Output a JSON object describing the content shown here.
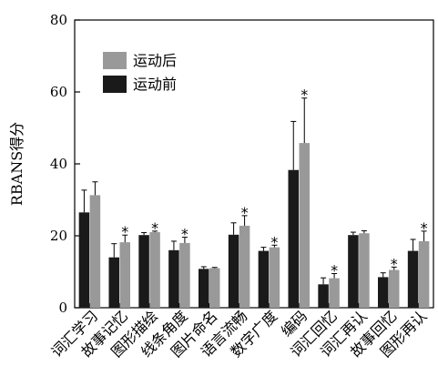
{
  "chart_data": {
    "type": "bar",
    "title": "",
    "xlabel": "",
    "ylabel": "RBANS得分",
    "ylim": [
      0,
      80
    ],
    "yticks": [
      0,
      20,
      40,
      60,
      80
    ],
    "grid": false,
    "legend_position": "top-left",
    "categories": [
      "词汇学习",
      "故事记忆",
      "图形描绘",
      "线条角度",
      "图片命名",
      "语言流畅",
      "数字广度",
      "编码",
      "词汇回忆",
      "词汇再认",
      "故事回忆",
      "图形再认"
    ],
    "series": [
      {
        "name": "运动前",
        "color": "#1a1a1a",
        "values": [
          26.5,
          14.0,
          20.2,
          16.0,
          10.8,
          20.3,
          15.8,
          38.3,
          6.5,
          20.2,
          8.5,
          15.8
        ],
        "errors": [
          6.2,
          3.8,
          0.7,
          2.5,
          0.6,
          3.3,
          1.0,
          13.5,
          1.8,
          0.8,
          1.2,
          3.2
        ]
      },
      {
        "name": "运动后",
        "color": "#999999",
        "values": [
          31.3,
          18.2,
          21.0,
          18.0,
          11.0,
          22.8,
          16.8,
          45.8,
          8.2,
          20.7,
          10.5,
          18.5
        ],
        "errors": [
          3.7,
          2.0,
          0.3,
          1.6,
          0.2,
          2.8,
          0.6,
          12.5,
          1.3,
          0.7,
          0.8,
          2.8
        ]
      }
    ],
    "significance_marker": "*",
    "significant_categories": [
      "故事记忆",
      "图形描绘",
      "线条角度",
      "语言流畅",
      "数字广度",
      "编码",
      "词汇回忆",
      "故事回忆",
      "图形再认"
    ]
  }
}
